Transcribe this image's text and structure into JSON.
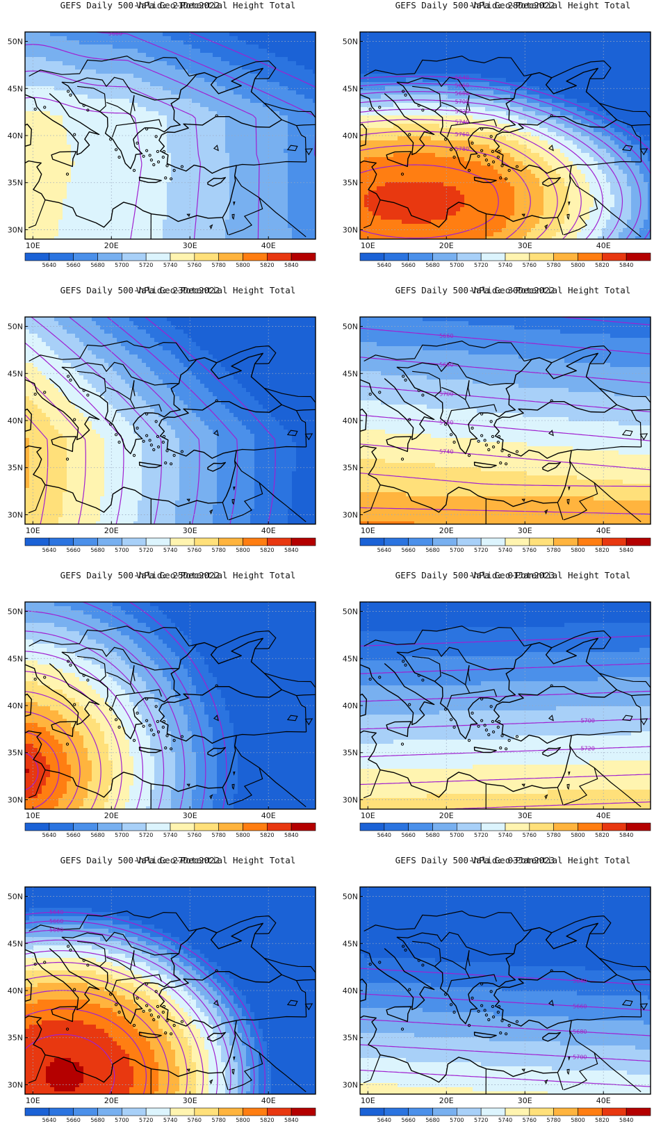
{
  "title_prefix": "GEFS Daily 500-hPa Geo-Potential Height Total",
  "colorbar": {
    "labels": [
      "5640",
      "5660",
      "5680",
      "5700",
      "5720",
      "5740",
      "5760",
      "5780",
      "5800",
      "5820",
      "5840"
    ],
    "colors": [
      "#1b62d6",
      "#2b74e0",
      "#4b90ea",
      "#78b0f0",
      "#a8d0f8",
      "#dcf4fd",
      "#fff4b0",
      "#ffe07a",
      "#ffb43e",
      "#ff7e12",
      "#e83810",
      "#b40000"
    ]
  },
  "axes": {
    "x_ticks": [
      "10E",
      "20E",
      "30E",
      "40E"
    ],
    "y_ticks": [
      "50N",
      "45N",
      "40N",
      "35N",
      "30N"
    ],
    "lon_range": [
      9,
      46
    ],
    "lat_range": [
      29,
      51
    ]
  },
  "contour_color": "#a020d0",
  "panels": [
    {
      "valid": "Valid: 21Dec2022",
      "contour_labels": [
        "5640",
        "5660"
      ]
    },
    {
      "valid": "Valid: 28Dec2022",
      "contour_labels": [
        "5640",
        "5660",
        "5680",
        "5700",
        "5720",
        "5740",
        "5760",
        "5780"
      ]
    },
    {
      "valid": "Valid: 23Dec2022",
      "contour_labels": []
    },
    {
      "valid": "Valid: 30Dec2022",
      "contour_labels": [
        "5640",
        "5660",
        "5680",
        "5700",
        "5720",
        "5740"
      ]
    },
    {
      "valid": "Valid: 25Dec2022",
      "contour_labels": []
    },
    {
      "valid": "Valid: 01Jan2023",
      "contour_labels": [
        "5700",
        "5720"
      ]
    },
    {
      "valid": "Valid: 27Dec2022",
      "contour_labels": [
        "5640",
        "5660",
        "5680"
      ]
    },
    {
      "valid": "Valid: 03Jan2023",
      "contour_labels": [
        "5640",
        "5660",
        "5680",
        "5700"
      ]
    }
  ]
}
